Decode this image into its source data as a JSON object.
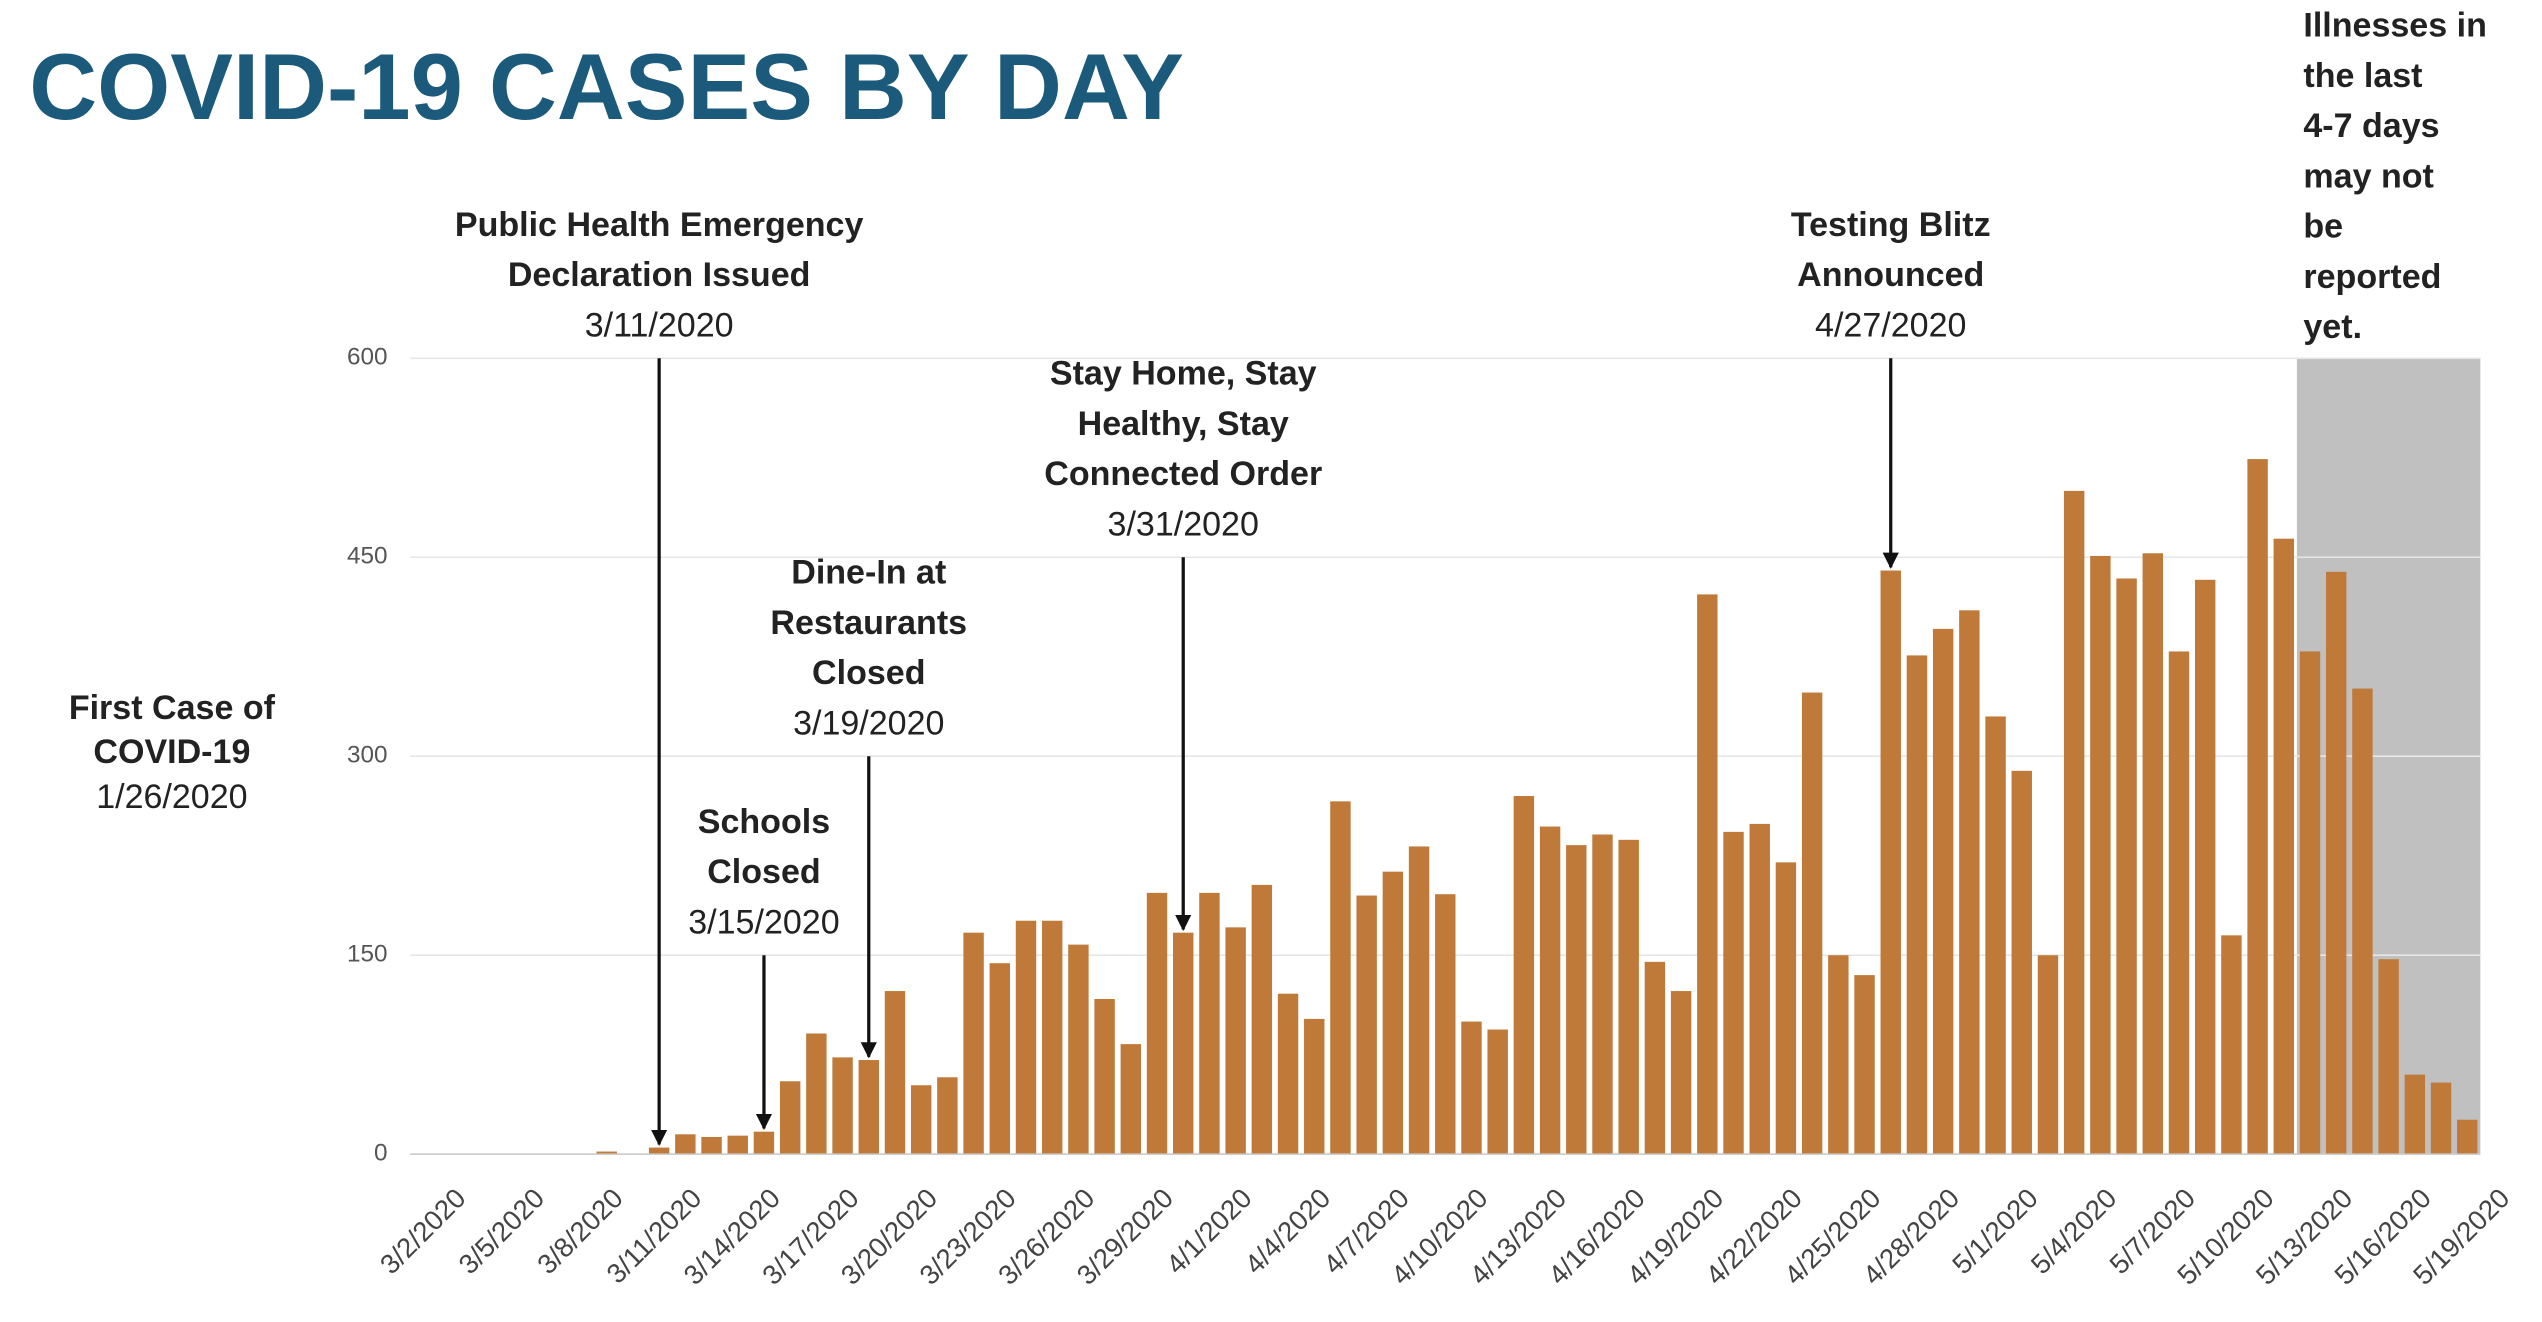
{
  "chart_data": {
    "type": "bar",
    "title": "COVID-19 CASES BY DAY",
    "color": "#bf7a3a",
    "grid": true,
    "ylim": [
      0,
      600
    ],
    "yticks": [
      0,
      150,
      300,
      450,
      600
    ],
    "categories": [
      "3/2/2020",
      null,
      null,
      "3/5/2020",
      null,
      null,
      "3/8/2020",
      null,
      null,
      "3/11/2020",
      null,
      null,
      "3/14/2020",
      null,
      null,
      "3/17/2020",
      null,
      null,
      "3/20/2020",
      null,
      null,
      "3/23/2020",
      null,
      null,
      "3/26/2020",
      null,
      null,
      "3/29/2020",
      null,
      null,
      "4/1/2020",
      null,
      null,
      "4/4/2020",
      null,
      null,
      "4/7/2020",
      null,
      null,
      "4/10/2020",
      null,
      null,
      "4/13/2020",
      null,
      null,
      "4/16/2020",
      null,
      null,
      "4/19/2020",
      null,
      null,
      "4/22/2020",
      null,
      null,
      "4/25/2020",
      null,
      null,
      "4/28/2020",
      null,
      null,
      "5/1/2020",
      null,
      null,
      "5/4/2020",
      null,
      null,
      "5/7/2020",
      null,
      null,
      "5/10/2020",
      null,
      null,
      "5/13/2020",
      null,
      null,
      "5/16/2020",
      null,
      null,
      "5/19/2020"
    ],
    "values": [
      0,
      0,
      0,
      0,
      0,
      0,
      0,
      2,
      0,
      5,
      15,
      13,
      14,
      17,
      55,
      91,
      73,
      71,
      123,
      52,
      58,
      167,
      144,
      176,
      176,
      158,
      117,
      83,
      197,
      167,
      197,
      171,
      203,
      121,
      102,
      266,
      195,
      213,
      232,
      196,
      100,
      94,
      270,
      247,
      233,
      241,
      237,
      145,
      123,
      422,
      243,
      249,
      220,
      348,
      150,
      135,
      440,
      376,
      396,
      410,
      330,
      289,
      150,
      500,
      451,
      434,
      453,
      379,
      433,
      165,
      524,
      464,
      379,
      439,
      351,
      147,
      60,
      54,
      26
    ],
    "annotations": [
      {
        "lines": [
          "Public Health Emergency",
          "Declaration Issued"
        ],
        "date": "3/11/2020",
        "arrow_from": 600
      },
      {
        "lines": [
          "Schools",
          "Closed"
        ],
        "date": "3/15/2020",
        "arrow_from": 150
      },
      {
        "lines": [
          "Dine-In at",
          "Restaurants",
          "Closed"
        ],
        "date": "3/19/2020",
        "arrow_from": 300
      },
      {
        "lines": [
          "Stay Home, Stay",
          "Healthy,  Stay",
          "Connected Order"
        ],
        "date": "3/31/2020",
        "arrow_from": 450
      },
      {
        "lines": [
          "Testing Blitz",
          "Announced"
        ],
        "date": "4/27/2020",
        "arrow_from": 600
      }
    ],
    "first_case": {
      "lines": [
        "First Case of",
        "COVID-19"
      ],
      "date": "1/26/2020"
    },
    "shaded": {
      "from": "5/13/2020",
      "lines": [
        "Illnesses in",
        "the last",
        "4-7 days",
        "may not",
        "be",
        "reported",
        "yet."
      ]
    }
  }
}
